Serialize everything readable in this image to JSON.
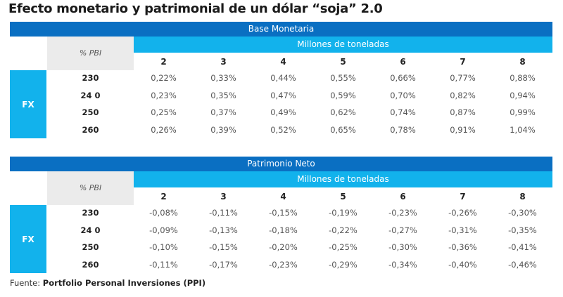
{
  "title": "Efecto monetario y patrimonial de un dólar “soja” 2.0",
  "tables": [
    {
      "name": "Base Monetaria",
      "subheader": "Millones de toneladas",
      "corner": "% PBI",
      "row_group": "FX",
      "columns": [
        "2",
        "3",
        "4",
        "5",
        "6",
        "7",
        "8"
      ],
      "rows": [
        {
          "label": "230",
          "values": [
            "0,22%",
            "0,33%",
            "0,44%",
            "0,55%",
            "0,66%",
            "0,77%",
            "0,88%"
          ]
        },
        {
          "label": "24 0",
          "values": [
            "0,23%",
            "0,35%",
            "0,47%",
            "0,59%",
            "0,70%",
            "0,82%",
            "0,94%"
          ]
        },
        {
          "label": "250",
          "values": [
            "0,25%",
            "0,37%",
            "0,49%",
            "0,62%",
            "0,74%",
            "0,87%",
            "0,99%"
          ]
        },
        {
          "label": "260",
          "values": [
            "0,26%",
            "0,39%",
            "0,52%",
            "0,65%",
            "0,78%",
            "0,91%",
            "1,04%"
          ]
        }
      ]
    },
    {
      "name": "Patrimonio Neto",
      "subheader": "Millones de toneladas",
      "corner": "% PBI",
      "row_group": "FX",
      "columns": [
        "2",
        "3",
        "4",
        "5",
        "6",
        "7",
        "8"
      ],
      "rows": [
        {
          "label": "230",
          "values": [
            "-0,08%",
            "-0,11%",
            "-0,15%",
            "-0,19%",
            "-0,23%",
            "-0,26%",
            "-0,30%"
          ]
        },
        {
          "label": "24 0",
          "values": [
            "-0,09%",
            "-0,13%",
            "-0,18%",
            "-0,22%",
            "-0,27%",
            "-0,31%",
            "-0,35%"
          ]
        },
        {
          "label": "250",
          "values": [
            "-0,10%",
            "-0,15%",
            "-0,20%",
            "-0,25%",
            "-0,30%",
            "-0,36%",
            "-0,41%"
          ]
        },
        {
          "label": "260",
          "values": [
            "-0,11%",
            "-0,17%",
            "-0,23%",
            "-0,29%",
            "-0,34%",
            "-0,40%",
            "-0,46%"
          ]
        }
      ]
    }
  ],
  "footer": {
    "prefix": "Fuente: ",
    "source": "Portfolio Personal Inversiones (PPI)"
  },
  "colors": {
    "dark": "#0a6fc2",
    "light": "#12b2ec",
    "grey": "#ebebeb"
  }
}
